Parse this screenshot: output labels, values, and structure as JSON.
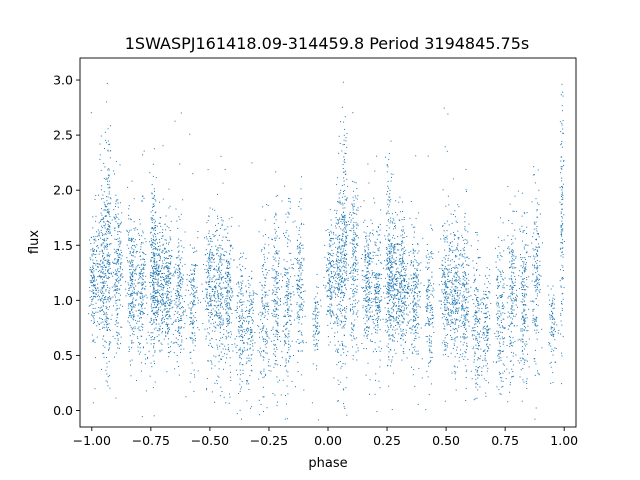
{
  "chart_data": {
    "type": "scatter",
    "title": "1SWASPJ161418.09-314459.8 Period 3194845.75s",
    "xlabel": "phase",
    "ylabel": "flux",
    "xlim": [
      -1.05,
      1.05
    ],
    "ylim": [
      -0.15,
      3.2
    ],
    "xticks": [
      -1.0,
      -0.75,
      -0.5,
      -0.25,
      0.0,
      0.25,
      0.5,
      0.75,
      1.0
    ],
    "xtick_labels": [
      "−1.00",
      "−0.75",
      "−0.50",
      "−0.25",
      "0.00",
      "0.25",
      "0.50",
      "0.75",
      "1.00"
    ],
    "yticks": [
      0.0,
      0.5,
      1.0,
      1.5,
      2.0,
      2.5,
      3.0
    ],
    "ytick_labels": [
      "0.0",
      "0.5",
      "1.0",
      "1.5",
      "2.0",
      "2.5",
      "3.0"
    ],
    "grid": false,
    "marker_color": "#1f77b4",
    "series": [
      {
        "clusters": [
          [
            -0.99,
            1.2,
            0.01,
            0.28,
            160
          ],
          [
            -0.95,
            1.3,
            0.012,
            0.4,
            260
          ],
          [
            -0.93,
            1.45,
            0.006,
            0.65,
            160
          ],
          [
            -0.89,
            1.3,
            0.01,
            0.38,
            200
          ],
          [
            -0.83,
            1.15,
            0.012,
            0.3,
            220
          ],
          [
            -0.79,
            1.1,
            0.01,
            0.32,
            180
          ],
          [
            -0.74,
            1.3,
            0.008,
            0.45,
            190
          ],
          [
            -0.72,
            1.15,
            0.015,
            0.3,
            260
          ],
          [
            -0.68,
            1.1,
            0.012,
            0.28,
            220
          ],
          [
            -0.63,
            1.05,
            0.012,
            0.3,
            200
          ],
          [
            -0.57,
            0.95,
            0.01,
            0.3,
            140
          ],
          [
            -0.5,
            1.1,
            0.012,
            0.3,
            200
          ],
          [
            -0.46,
            1.05,
            0.012,
            0.35,
            220
          ],
          [
            -0.42,
            1.0,
            0.01,
            0.35,
            180
          ],
          [
            -0.37,
            0.8,
            0.01,
            0.3,
            150
          ],
          [
            -0.33,
            0.75,
            0.01,
            0.25,
            120
          ],
          [
            -0.27,
            0.9,
            0.012,
            0.35,
            160
          ],
          [
            -0.22,
            1.0,
            0.01,
            0.38,
            170
          ],
          [
            -0.17,
            1.0,
            0.01,
            0.42,
            180
          ],
          [
            -0.12,
            1.15,
            0.01,
            0.4,
            160
          ],
          [
            -0.05,
            0.75,
            0.008,
            0.2,
            80
          ],
          [
            0.01,
            1.2,
            0.01,
            0.28,
            160
          ],
          [
            0.05,
            1.3,
            0.012,
            0.4,
            260
          ],
          [
            0.07,
            1.45,
            0.006,
            0.65,
            160
          ],
          [
            0.11,
            1.3,
            0.01,
            0.38,
            200
          ],
          [
            0.17,
            1.15,
            0.012,
            0.3,
            220
          ],
          [
            0.21,
            1.1,
            0.01,
            0.32,
            180
          ],
          [
            0.26,
            1.3,
            0.008,
            0.45,
            190
          ],
          [
            0.28,
            1.15,
            0.015,
            0.3,
            260
          ],
          [
            0.32,
            1.1,
            0.012,
            0.28,
            220
          ],
          [
            0.37,
            1.05,
            0.012,
            0.3,
            200
          ],
          [
            0.43,
            0.95,
            0.01,
            0.3,
            140
          ],
          [
            0.5,
            1.1,
            0.012,
            0.3,
            200
          ],
          [
            0.54,
            1.05,
            0.012,
            0.35,
            220
          ],
          [
            0.58,
            1.0,
            0.01,
            0.35,
            180
          ],
          [
            0.63,
            0.8,
            0.01,
            0.3,
            150
          ],
          [
            0.67,
            0.75,
            0.01,
            0.25,
            120
          ],
          [
            0.73,
            0.9,
            0.012,
            0.35,
            160
          ],
          [
            0.78,
            1.0,
            0.01,
            0.38,
            170
          ],
          [
            0.83,
            1.0,
            0.01,
            0.42,
            180
          ],
          [
            0.88,
            1.15,
            0.01,
            0.4,
            160
          ],
          [
            0.95,
            0.75,
            0.008,
            0.2,
            80
          ],
          [
            0.99,
            1.7,
            0.004,
            0.55,
            120
          ]
        ]
      }
    ]
  }
}
